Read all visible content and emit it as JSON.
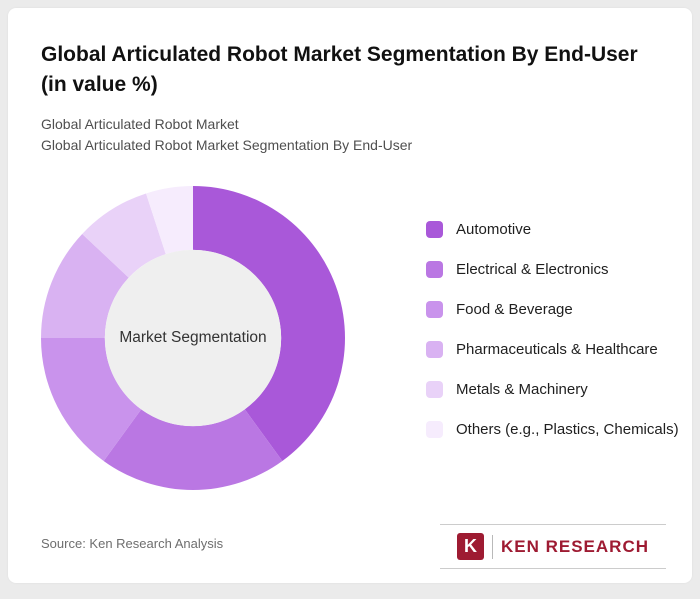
{
  "header": {
    "title": "Global Articulated Robot Market Segmentation By End-User (in value %)",
    "subtitle_line1": "Global Articulated Robot Market",
    "subtitle_line2": "Global Articulated Robot Market Segmentation By End-User"
  },
  "chart_data": {
    "type": "pie",
    "subtype": "donut",
    "title": "Global Articulated Robot Market Segmentation By End-User (in value %)",
    "unit": "value %",
    "center_label": "Market Segmentation",
    "categories": [
      "Automotive",
      "Electrical & Electronics",
      "Food & Beverage",
      "Pharmaceuticals & Healthcare",
      "Metals & Machinery",
      "Others (e.g., Plastics, Chemicals)"
    ],
    "values": [
      40,
      20,
      15,
      12,
      8,
      5
    ],
    "colors": [
      "#a958d9",
      "#ba77e3",
      "#c993ec",
      "#d9b2f2",
      "#e9d2f8",
      "#f6ecfd"
    ],
    "legend_position": "right",
    "start_angle_deg": -90,
    "clockwise": true,
    "inner_radius_ratio": 0.58,
    "center_fill": "#efefef"
  },
  "footer": {
    "source": "Source: Ken Research Analysis",
    "logo_mark": "K",
    "logo_text": "KEN RESEARCH",
    "logo_color": "#9e1b32"
  }
}
